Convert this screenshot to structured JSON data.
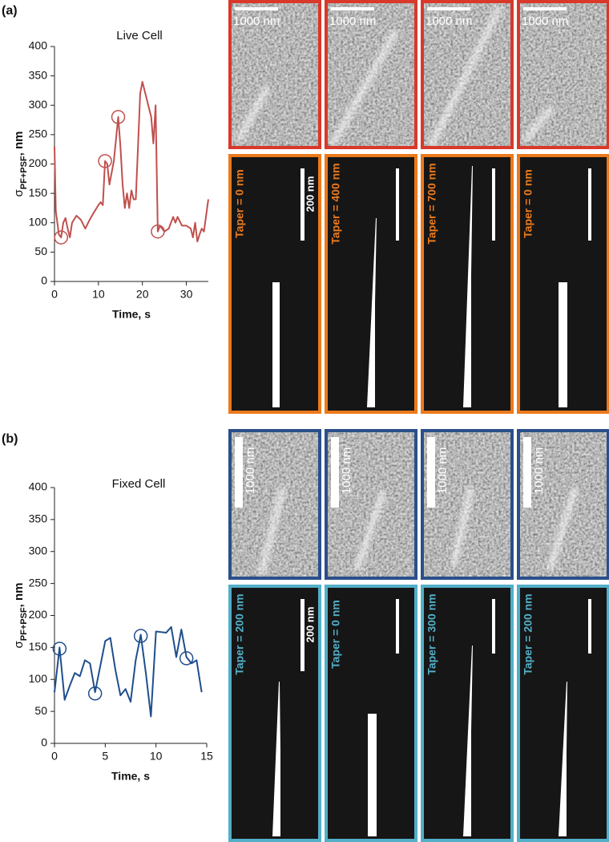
{
  "chart_data": [
    {
      "type": "line",
      "title": "Live Cell",
      "x_label": "Time, s",
      "y_label": "σ",
      "y_label_sub": "PF+PSF",
      "y_label_unit": ", nm",
      "color": "#c0504d",
      "x": [
        0,
        0.3,
        1,
        1.5,
        2,
        2.5,
        3,
        3.5,
        4,
        5,
        6,
        7,
        8,
        9,
        10,
        10.5,
        11,
        11.5,
        12,
        12.5,
        13,
        13.5,
        14.5,
        15,
        15.5,
        16,
        16.5,
        17,
        17.5,
        18,
        18.5,
        19.5,
        20,
        21,
        22,
        22.5,
        23,
        23.5,
        24,
        25,
        26,
        27,
        27.5,
        28,
        29,
        30,
        31,
        31.5,
        32,
        32.5,
        33,
        33.5,
        34,
        35
      ],
      "values": [
        230,
        120,
        80,
        75,
        100,
        108,
        90,
        75,
        100,
        112,
        105,
        90,
        105,
        118,
        130,
        135,
        130,
        205,
        200,
        165,
        185,
        205,
        280,
        230,
        165,
        125,
        150,
        125,
        155,
        140,
        140,
        320,
        340,
        310,
        280,
        235,
        300,
        85,
        95,
        85,
        90,
        110,
        100,
        110,
        95,
        95,
        90,
        75,
        100,
        68,
        80,
        90,
        85,
        140
      ],
      "markers": {
        "x": [
          1.5,
          11.5,
          14.5,
          23.5
        ],
        "values": [
          75,
          205,
          280,
          85
        ]
      },
      "xlim": [
        0,
        35
      ],
      "xticks": [
        0,
        10,
        20,
        30
      ],
      "ylim": [
        0,
        400
      ],
      "yticks": [
        0,
        50,
        100,
        150,
        200,
        250,
        300,
        350,
        400
      ]
    },
    {
      "type": "line",
      "title": "Fixed Cell",
      "x_label": "Time, s",
      "y_label": "σ",
      "y_label_sub": "PF+PSF",
      "y_label_unit": ", nm",
      "color": "#1f4e8c",
      "x": [
        0,
        0.5,
        1,
        1.5,
        2,
        2.5,
        3,
        3.5,
        4,
        4.5,
        5,
        5.5,
        6,
        6.5,
        7,
        7.5,
        8,
        8.5,
        9,
        9.5,
        10,
        11,
        11.5,
        12,
        12.5,
        13,
        13.5,
        14,
        14.5
      ],
      "values": [
        80,
        150,
        68,
        90,
        110,
        105,
        130,
        125,
        80,
        120,
        160,
        165,
        115,
        75,
        85,
        65,
        130,
        170,
        110,
        42,
        175,
        173,
        182,
        135,
        178,
        135,
        125,
        130,
        80
      ],
      "markers": {
        "x": [
          0.5,
          4,
          8.5,
          13
        ],
        "values": [
          148,
          78,
          168,
          133
        ]
      },
      "xlim": [
        0,
        15
      ],
      "xticks": [
        0,
        5,
        10,
        15
      ],
      "ylim": [
        0,
        400
      ],
      "yticks": [
        0,
        50,
        100,
        150,
        200,
        250,
        300,
        350,
        400
      ]
    }
  ],
  "panels": [
    {
      "label": "(a)",
      "scale_label": "1000 nm",
      "sim_scale_label": "200 nm",
      "tapers": [
        "Taper = 0 nm",
        "Taper = 400 nm",
        "Taper = 700 nm",
        "Taper = 0 nm"
      ]
    },
    {
      "label": "(b)",
      "scale_label": "1000 nm",
      "sim_scale_label": "200 nm",
      "tapers": [
        "Taper = 200 nm",
        "Taper = 0 nm",
        "Taper = 300 nm",
        "Taper = 200 nm"
      ]
    }
  ]
}
